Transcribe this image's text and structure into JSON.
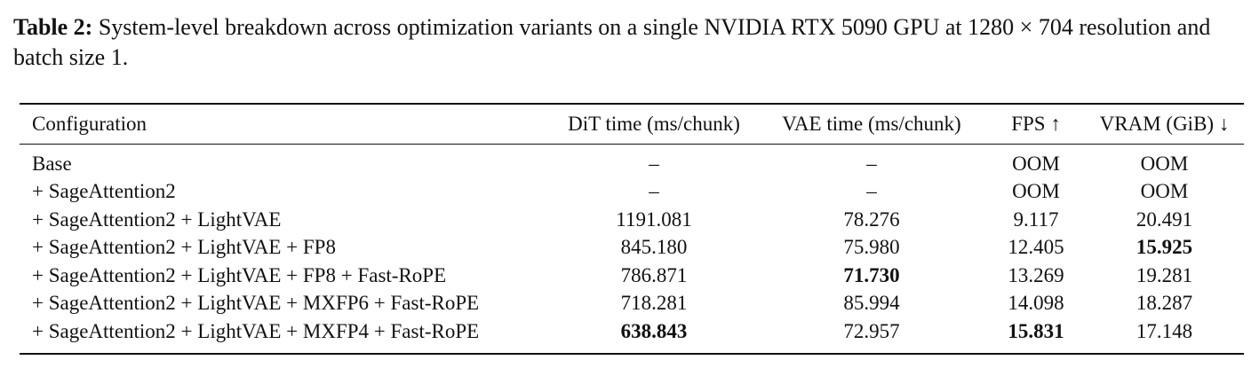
{
  "caption": {
    "label": "Table 2:",
    "text": "System-level breakdown across optimization variants on a single NVIDIA RTX 5090 GPU at 1280 × 704 resolution and batch size 1."
  },
  "table": {
    "headers": [
      "Configuration",
      "DiT time (ms/chunk)",
      "VAE time (ms/chunk)",
      "FPS ↑",
      "VRAM (GiB) ↓"
    ],
    "rows": [
      {
        "config": "Base",
        "dit": "–",
        "vae": "–",
        "fps": "OOM",
        "vram": "OOM",
        "bold": []
      },
      {
        "config": "+ SageAttention2",
        "dit": "–",
        "vae": "–",
        "fps": "OOM",
        "vram": "OOM",
        "bold": []
      },
      {
        "config": "+ SageAttention2 + LightVAE",
        "dit": "1191.081",
        "vae": "78.276",
        "fps": "9.117",
        "vram": "20.491",
        "bold": []
      },
      {
        "config": "+ SageAttention2 + LightVAE + FP8",
        "dit": "845.180",
        "vae": "75.980",
        "fps": "12.405",
        "vram": "15.925",
        "bold": [
          "vram"
        ]
      },
      {
        "config": "+ SageAttention2 + LightVAE + FP8 + Fast-RoPE",
        "dit": "786.871",
        "vae": "71.730",
        "fps": "13.269",
        "vram": "19.281",
        "bold": [
          "vae"
        ]
      },
      {
        "config": "+ SageAttention2 + LightVAE + MXFP6 + Fast-RoPE",
        "dit": "718.281",
        "vae": "85.994",
        "fps": "14.098",
        "vram": "18.287",
        "bold": []
      },
      {
        "config": "+ SageAttention2 + LightVAE + MXFP4 + Fast-RoPE",
        "dit": "638.843",
        "vae": "72.957",
        "fps": "15.831",
        "vram": "17.148",
        "bold": [
          "dit",
          "fps"
        ]
      }
    ]
  }
}
